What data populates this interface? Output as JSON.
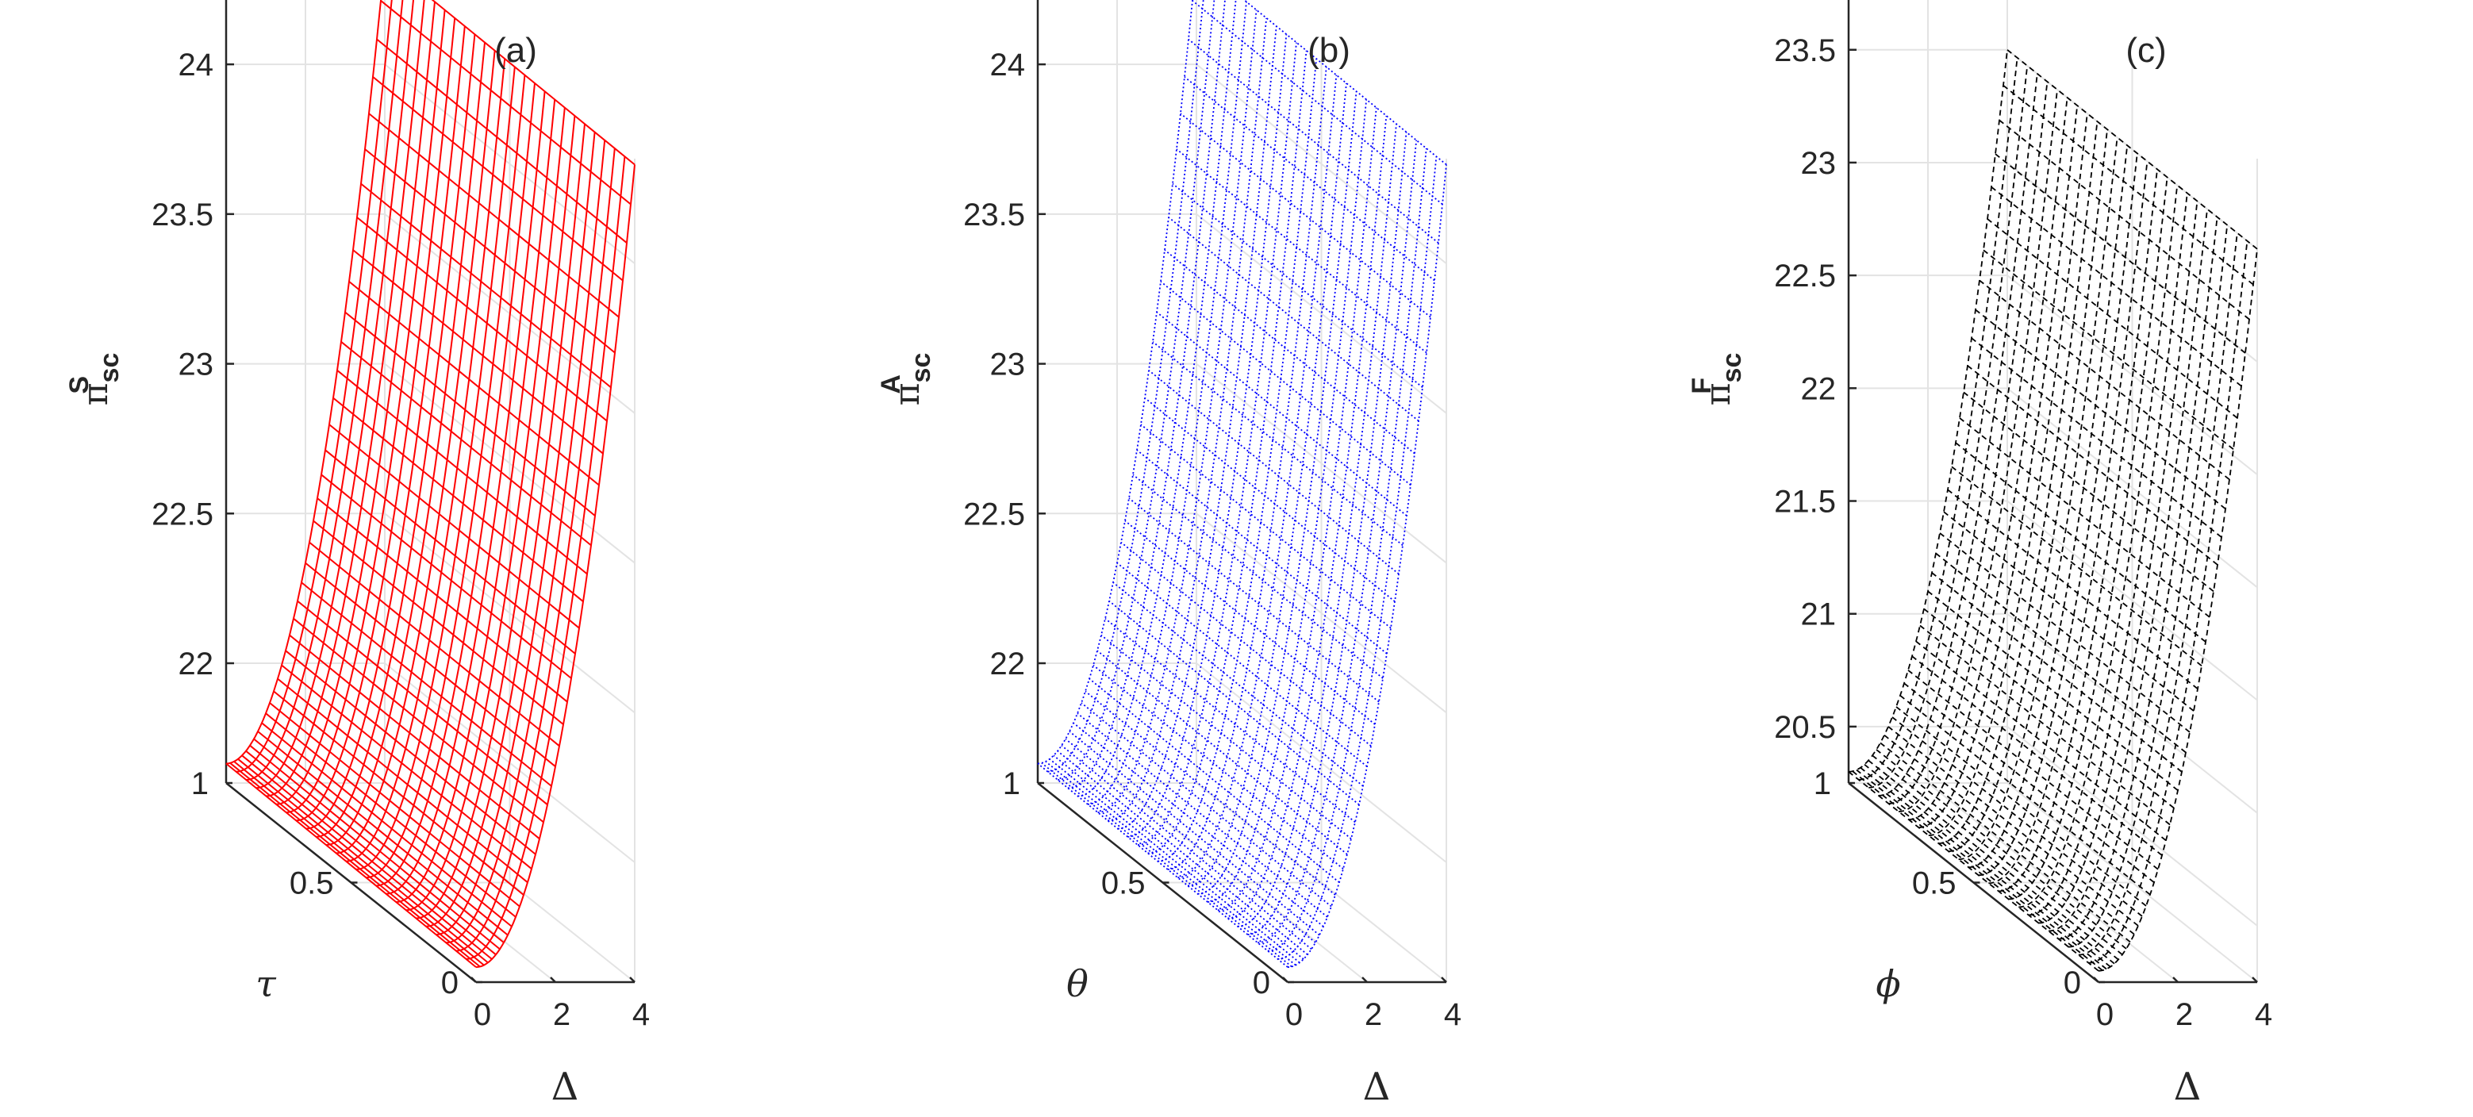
{
  "chart_data": [
    {
      "type": "surface",
      "title": "(a)",
      "zlabel": {
        "base": "π",
        "sub": "sc",
        "sup": "S"
      },
      "xlabel": "Δ",
      "ylabel": "τ",
      "x_ticks": [
        "0",
        "2",
        "4"
      ],
      "y_ticks": [
        "0",
        "0.5",
        "1"
      ],
      "z_ticks": [
        "22",
        "22.5",
        "23",
        "23.5",
        "24"
      ],
      "xlim": [
        0,
        4
      ],
      "ylim": [
        0,
        1
      ],
      "zlim": [
        21.6,
        24.35
      ],
      "z_model": {
        "base": 21.65,
        "delta_coef": 0.1675,
        "param_coef": 0.015,
        "exponent": 2
      },
      "color": "#ff0000",
      "line_style": "solid",
      "mesh": [
        40,
        25
      ]
    },
    {
      "type": "surface",
      "title": "(b)",
      "zlabel": {
        "base": "π",
        "sub": "sc",
        "sup": "A"
      },
      "xlabel": "Δ",
      "ylabel": "θ",
      "x_ticks": [
        "0",
        "2",
        "4"
      ],
      "y_ticks": [
        "0",
        "0.5",
        "1"
      ],
      "z_ticks": [
        "22",
        "22.5",
        "23",
        "23.5",
        "24"
      ],
      "xlim": [
        0,
        4
      ],
      "ylim": [
        0,
        1
      ],
      "zlim": [
        21.6,
        24.35
      ],
      "z_model": {
        "base": 21.65,
        "delta_coef": 0.1675,
        "param_coef": 0.015,
        "exponent": 2
      },
      "color": "#0000ff",
      "line_style": "dotted",
      "mesh": [
        40,
        25
      ]
    },
    {
      "type": "surface",
      "title": "(c)",
      "zlabel": {
        "base": "π",
        "sub": "sc",
        "sup": "F"
      },
      "xlabel": "Δ",
      "ylabel": "ϕ",
      "x_ticks": [
        "0",
        "2",
        "4"
      ],
      "y_ticks": [
        "0",
        "0.5",
        "1"
      ],
      "z_ticks": [
        "20.5",
        "21",
        "21.5",
        "22",
        "22.5",
        "23",
        "23.5"
      ],
      "xlim": [
        0,
        4
      ],
      "ylim": [
        0,
        1
      ],
      "zlim": [
        20.25,
        23.9
      ],
      "z_model": {
        "base": 20.3,
        "delta_coef": 0.2,
        "param_coef": 0.0,
        "exponent": 2
      },
      "color": "#000000",
      "line_style": "dashed",
      "mesh": [
        40,
        25
      ]
    }
  ]
}
